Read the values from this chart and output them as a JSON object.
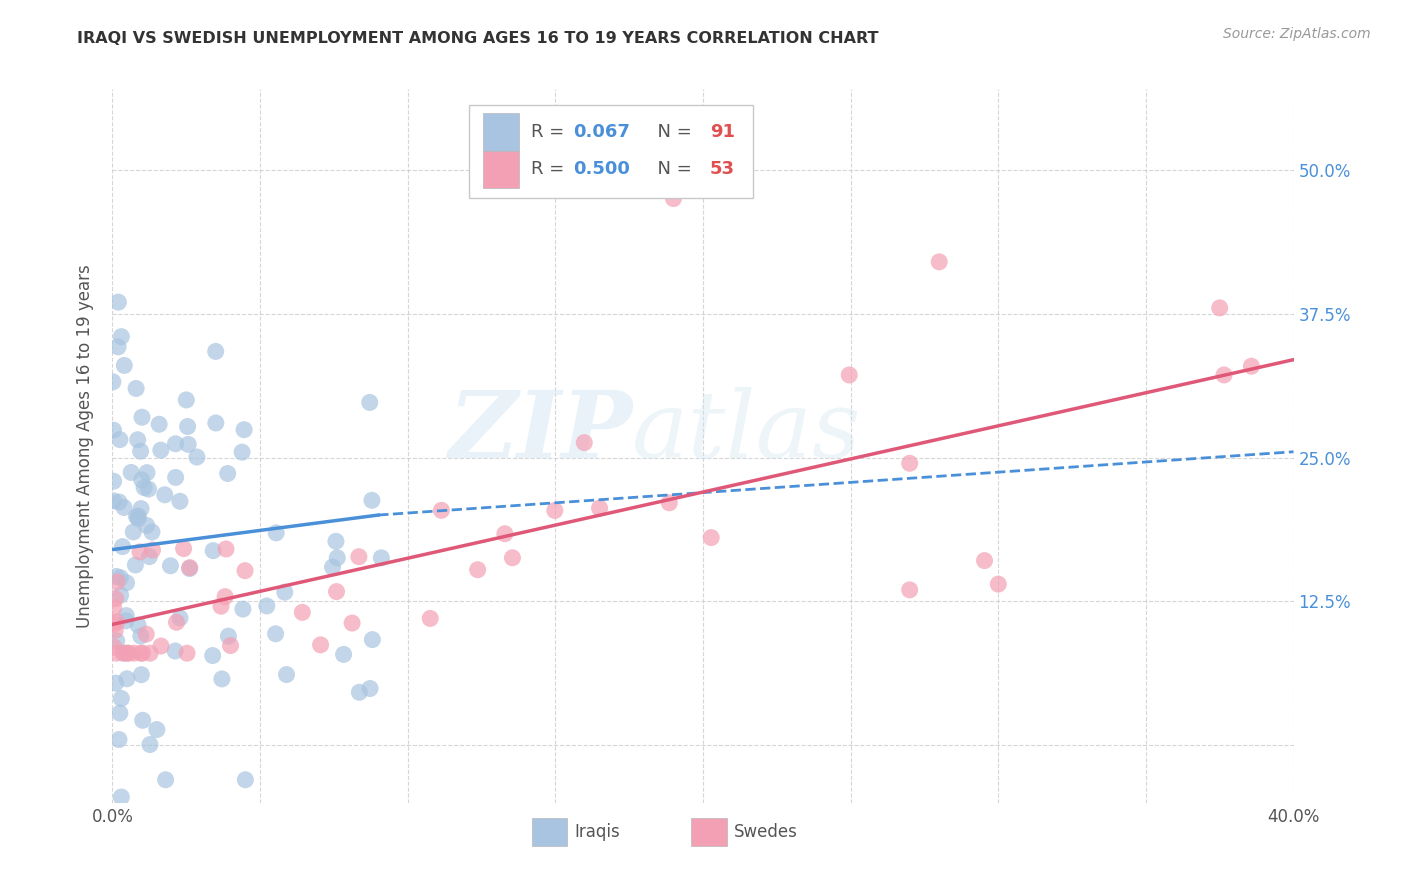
{
  "title": "IRAQI VS SWEDISH UNEMPLOYMENT AMONG AGES 16 TO 19 YEARS CORRELATION CHART",
  "source": "Source: ZipAtlas.com",
  "ylabel": "Unemployment Among Ages 16 to 19 years",
  "xlim": [
    0.0,
    0.4
  ],
  "ylim": [
    -0.05,
    0.57
  ],
  "xtick_positions": [
    0.0,
    0.05,
    0.1,
    0.15,
    0.2,
    0.25,
    0.3,
    0.35,
    0.4
  ],
  "xticklabels": [
    "0.0%",
    "",
    "",
    "",
    "",
    "",
    "",
    "",
    "40.0%"
  ],
  "ytick_positions": [
    0.0,
    0.125,
    0.25,
    0.375,
    0.5
  ],
  "yticklabels": [
    "",
    "12.5%",
    "25.0%",
    "37.5%",
    "50.0%"
  ],
  "iraqis_color": "#a8c4e0",
  "swedes_color": "#f4a0b4",
  "iraqis_line_color": "#4a90d9",
  "swedes_line_color": "#e05878",
  "legend_R_iraqis": "0.067",
  "legend_N_iraqis": "91",
  "legend_R_swedes": "0.500",
  "legend_N_swedes": "53",
  "watermark": "ZIPatlas",
  "background_color": "#ffffff",
  "grid_color": "#cccccc",
  "title_color": "#333333",
  "label_color": "#555555",
  "right_tick_color": "#4a90d9"
}
